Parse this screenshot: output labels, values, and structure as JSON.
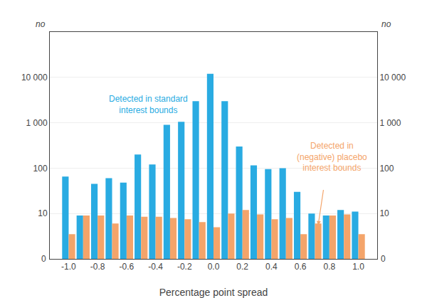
{
  "chart_data": {
    "type": "bar",
    "x": [
      -1.0,
      -0.9,
      -0.8,
      -0.7,
      -0.6,
      -0.5,
      -0.4,
      -0.3,
      -0.2,
      -0.1,
      0.0,
      0.1,
      0.2,
      0.3,
      0.4,
      0.5,
      0.6,
      0.7,
      0.8,
      0.9,
      1.0
    ],
    "series": [
      {
        "color": "#29ABE2",
        "values": [
          65,
          9,
          45,
          60,
          48,
          200,
          120,
          900,
          1050,
          3000,
          12000,
          3000,
          300,
          115,
          95,
          100,
          30,
          10,
          9,
          12,
          11
        ]
      },
      {
        "color": "#F4A46A",
        "values": [
          3.5,
          9,
          9,
          6,
          9,
          8.5,
          8.5,
          8,
          7.5,
          6.5,
          5,
          10,
          12,
          9.5,
          7.5,
          8,
          3.5,
          6,
          9,
          9.5,
          3.5
        ]
      }
    ],
    "xlabel": "Percentage point spread",
    "ylabel": "no",
    "y2label": "no",
    "log": "y",
    "grid": "y",
    "xlim": [
      -1.13,
      1.13
    ],
    "xticks": [
      {
        "value": -1.0,
        "label": "-1.0"
      },
      -0.8,
      -0.6,
      -0.4,
      -0.2,
      {
        "value": 0.0,
        "label": "0.0"
      },
      0.2,
      0.4,
      0.6,
      0.8,
      {
        "value": 1.0,
        "label": "1.0"
      }
    ],
    "ylim": [
      1,
      100000
    ],
    "yticks": [
      10,
      100,
      {
        "value": 1000,
        "label": "1 000"
      },
      {
        "value": 10000,
        "label": "10 000"
      }
    ],
    "y2lim": [
      1,
      100000
    ],
    "y2ticks": [
      10,
      100,
      {
        "value": 1000,
        "label": "1 000"
      },
      {
        "value": 10000,
        "label": "10 000"
      }
    ],
    "annotations": [
      {
        "text": "0"
      },
      {
        "text": "0"
      },
      {
        "text": "Detected in standard\ninterest bounds",
        "color": "#29ABE2"
      },
      {
        "text": "Detected in\n(negative) placebo\ninterest bounds",
        "color": "#F4A46A"
      }
    ]
  }
}
